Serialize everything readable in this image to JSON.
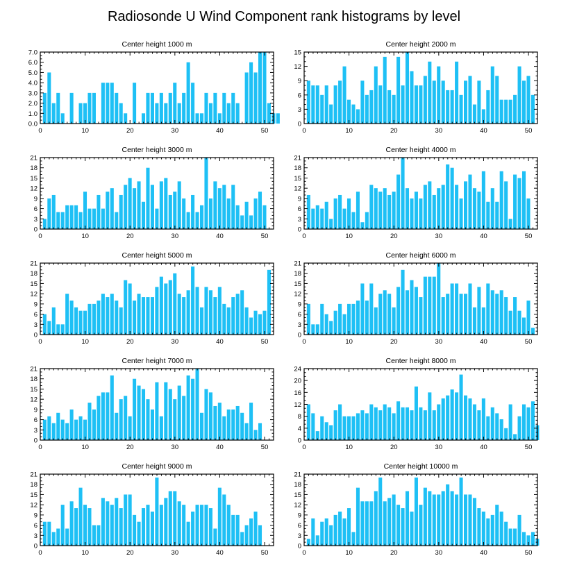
{
  "title": "Radiosonde U Wind Component rank histograms by level",
  "colors": {
    "bar": "#1ec0f5",
    "axis": "#000000",
    "background": "#ffffff"
  },
  "chart_data": [
    {
      "type": "bar",
      "title": "Center height 1000 m",
      "ylim": [
        0,
        7
      ],
      "yticks": [
        "0.0",
        "1.0",
        "2.0",
        "3.0",
        "4.0",
        "5.0",
        "6.0",
        "7.0"
      ],
      "yticks_values": [
        0,
        1,
        2,
        3,
        4,
        5,
        6,
        7
      ],
      "xlim": [
        0,
        52
      ],
      "xticks": [
        0,
        10,
        20,
        30,
        40,
        50
      ],
      "values": [
        3,
        5,
        2,
        3,
        1,
        0,
        3,
        0,
        2,
        2,
        3,
        3,
        0,
        4,
        4,
        4,
        3,
        2,
        1,
        0,
        4,
        0,
        1,
        3,
        3,
        2,
        3,
        2,
        3,
        4,
        2,
        3,
        6,
        4,
        1,
        1,
        3,
        2,
        3,
        1,
        3,
        2,
        3,
        2,
        0,
        5,
        6,
        5,
        7,
        7,
        2,
        1,
        1
      ]
    },
    {
      "type": "bar",
      "title": "Center height 2000 m",
      "ylim": [
        0,
        15
      ],
      "yticks": [
        "0",
        "3",
        "6",
        "9",
        "12",
        "15"
      ],
      "yticks_values": [
        0,
        3,
        6,
        9,
        12,
        15
      ],
      "xlim": [
        0,
        52
      ],
      "xticks": [
        0,
        10,
        20,
        30,
        40,
        50
      ],
      "values": [
        9,
        8,
        8,
        6,
        8,
        4,
        8,
        9,
        12,
        5,
        4,
        3,
        9,
        6,
        7,
        12,
        8,
        14,
        7,
        6,
        14,
        8,
        15,
        11,
        8,
        8,
        10,
        13,
        9,
        12,
        9,
        7,
        7,
        13,
        6,
        9,
        10,
        4,
        9,
        3,
        7,
        12,
        10,
        5,
        5,
        5,
        6,
        12,
        9,
        10,
        6
      ]
    },
    {
      "type": "bar",
      "title": "Center height 3000 m",
      "ylim": [
        0,
        21
      ],
      "yticks": [
        "0",
        "3",
        "6",
        "9",
        "12",
        "15",
        "18",
        "21"
      ],
      "yticks_values": [
        0,
        3,
        6,
        9,
        12,
        15,
        18,
        21
      ],
      "xlim": [
        0,
        52
      ],
      "xticks": [
        0,
        10,
        20,
        30,
        40,
        50
      ],
      "values": [
        3,
        9,
        10,
        5,
        5,
        7,
        7,
        7,
        5,
        11,
        6,
        6,
        10,
        6,
        11,
        12,
        5,
        10,
        13,
        15,
        12,
        14,
        8,
        18,
        13,
        6,
        14,
        15,
        10,
        11,
        14,
        9,
        5,
        10,
        5,
        7,
        21,
        9,
        14,
        12,
        13,
        9,
        13,
        7,
        4,
        8,
        4,
        9,
        11,
        7
      ]
    },
    {
      "type": "bar",
      "title": "Center height 4000 m",
      "ylim": [
        0,
        21
      ],
      "yticks": [
        "0",
        "3",
        "6",
        "9",
        "12",
        "15",
        "18",
        "21"
      ],
      "yticks_values": [
        0,
        3,
        6,
        9,
        12,
        15,
        18,
        21
      ],
      "xlim": [
        0,
        52
      ],
      "xticks": [
        0,
        10,
        20,
        30,
        40,
        50
      ],
      "values": [
        10,
        6,
        7,
        6,
        8,
        3,
        9,
        10,
        6,
        9,
        5,
        11,
        2,
        5,
        13,
        12,
        11,
        12,
        10,
        11,
        16,
        21,
        12,
        9,
        11,
        9,
        13,
        14,
        10,
        12,
        13,
        19,
        18,
        13,
        9,
        14,
        16,
        12,
        11,
        17,
        8,
        12,
        8,
        17,
        14,
        3,
        16,
        15,
        17,
        9
      ]
    },
    {
      "type": "bar",
      "title": "Center height 5000 m",
      "ylim": [
        0,
        21
      ],
      "yticks": [
        "0",
        "3",
        "6",
        "9",
        "12",
        "15",
        "18",
        "21"
      ],
      "yticks_values": [
        0,
        3,
        6,
        9,
        12,
        15,
        18,
        21
      ],
      "xlim": [
        0,
        52
      ],
      "xticks": [
        0,
        10,
        20,
        30,
        40,
        50
      ],
      "values": [
        6,
        4,
        8,
        3,
        3,
        12,
        10,
        8,
        7,
        7,
        9,
        9,
        10,
        12,
        11,
        12,
        10,
        8,
        16,
        15,
        10,
        12,
        11,
        11,
        11,
        14,
        17,
        15,
        16,
        18,
        12,
        11,
        13,
        20,
        14,
        8,
        14,
        13,
        11,
        14,
        9,
        8,
        11,
        12,
        13,
        8,
        5,
        7,
        6,
        7,
        19
      ]
    },
    {
      "type": "bar",
      "title": "Center height 6000 m",
      "ylim": [
        0,
        21
      ],
      "yticks": [
        "0",
        "3",
        "6",
        "9",
        "12",
        "15",
        "18",
        "21"
      ],
      "yticks_values": [
        0,
        3,
        6,
        9,
        12,
        15,
        18,
        21
      ],
      "xlim": [
        0,
        52
      ],
      "xticks": [
        0,
        10,
        20,
        30,
        40,
        50
      ],
      "values": [
        9,
        3,
        3,
        9,
        6,
        4,
        7,
        9,
        6,
        9,
        9,
        10,
        15,
        10,
        15,
        8,
        12,
        13,
        12,
        8,
        14,
        19,
        13,
        16,
        14,
        11,
        17,
        17,
        17,
        21,
        11,
        12,
        15,
        15,
        12,
        12,
        15,
        8,
        14,
        8,
        15,
        13,
        12,
        13,
        11,
        7,
        11,
        7,
        5,
        10,
        2
      ]
    },
    {
      "type": "bar",
      "title": "Center height 7000 m",
      "ylim": [
        0,
        21
      ],
      "yticks": [
        "0",
        "3",
        "6",
        "9",
        "12",
        "15",
        "18",
        "21"
      ],
      "yticks_values": [
        0,
        3,
        6,
        9,
        12,
        15,
        18,
        21
      ],
      "xlim": [
        0,
        52
      ],
      "xticks": [
        0,
        10,
        20,
        30,
        40,
        50
      ],
      "values": [
        6,
        7,
        5,
        8,
        6,
        5,
        9,
        6,
        7,
        6,
        11,
        9,
        13,
        14,
        14,
        19,
        8,
        12,
        13,
        7,
        18,
        16,
        15,
        12,
        9,
        17,
        7,
        17,
        15,
        12,
        16,
        13,
        19,
        18,
        21,
        8,
        15,
        14,
        10,
        11,
        7,
        9,
        9,
        10,
        8,
        5,
        11,
        3,
        5
      ]
    },
    {
      "type": "bar",
      "title": "Center height 8000 m",
      "ylim": [
        0,
        24
      ],
      "yticks": [
        "0",
        "4",
        "8",
        "12",
        "16",
        "20",
        "24"
      ],
      "yticks_values": [
        0,
        4,
        8,
        12,
        16,
        20,
        24
      ],
      "xlim": [
        0,
        52
      ],
      "xticks": [
        0,
        10,
        20,
        30,
        40,
        50
      ],
      "values": [
        12,
        9,
        3,
        8,
        6,
        5,
        10,
        12,
        8,
        8,
        8,
        9,
        10,
        9,
        12,
        11,
        10,
        12,
        11,
        9,
        13,
        11,
        11,
        10,
        18,
        11,
        10,
        16,
        10,
        12,
        14,
        15,
        17,
        16,
        22,
        15,
        14,
        12,
        10,
        14,
        8,
        11,
        9,
        7,
        4,
        12,
        2,
        8,
        12,
        11,
        13,
        5
      ]
    },
    {
      "type": "bar",
      "title": "Center height 9000 m",
      "ylim": [
        0,
        21
      ],
      "yticks": [
        "0",
        "3",
        "6",
        "9",
        "12",
        "15",
        "18",
        "21"
      ],
      "yticks_values": [
        0,
        3,
        6,
        9,
        12,
        15,
        18,
        21
      ],
      "xlim": [
        0,
        52
      ],
      "xticks": [
        0,
        10,
        20,
        30,
        40,
        50
      ],
      "values": [
        7,
        7,
        4,
        5,
        12,
        5,
        13,
        11,
        17,
        12,
        11,
        6,
        6,
        14,
        13,
        12,
        14,
        11,
        15,
        15,
        9,
        7,
        11,
        12,
        10,
        20,
        12,
        14,
        16,
        16,
        13,
        12,
        7,
        10,
        12,
        12,
        12,
        11,
        5,
        17,
        15,
        12,
        9,
        9,
        4,
        6,
        8,
        10,
        6
      ]
    },
    {
      "type": "bar",
      "title": "Center height 10000 m",
      "ylim": [
        0,
        21
      ],
      "yticks": [
        "0",
        "3",
        "6",
        "9",
        "12",
        "15",
        "18",
        "21"
      ],
      "yticks_values": [
        0,
        3,
        6,
        9,
        12,
        15,
        18,
        21
      ],
      "xlim": [
        0,
        52
      ],
      "xticks": [
        0,
        10,
        20,
        30,
        40,
        50
      ],
      "values": [
        2,
        8,
        3,
        7,
        8,
        6,
        9,
        10,
        8,
        11,
        4,
        17,
        13,
        13,
        13,
        16,
        20,
        13,
        14,
        15,
        12,
        11,
        16,
        10,
        20,
        12,
        17,
        16,
        15,
        15,
        16,
        18,
        16,
        15,
        20,
        15,
        15,
        14,
        11,
        10,
        8,
        9,
        12,
        10,
        7,
        5,
        5,
        9,
        4,
        3,
        4,
        2
      ]
    }
  ]
}
